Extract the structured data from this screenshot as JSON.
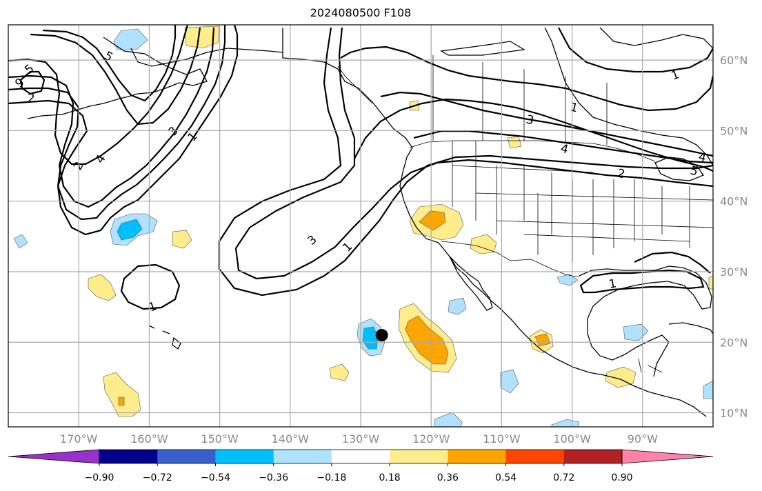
{
  "title": "2024080500 F108",
  "map": {
    "lon_range": [
      -180,
      -80
    ],
    "lat_range": [
      8,
      65
    ],
    "gridlines": true,
    "lat_ticks": [
      {
        "value": 60,
        "label": "60°N"
      },
      {
        "value": 50,
        "label": "50°N"
      },
      {
        "value": 40,
        "label": "40°N"
      },
      {
        "value": 30,
        "label": "30°N"
      },
      {
        "value": 20,
        "label": "20°N"
      },
      {
        "value": 10,
        "label": "10°N"
      }
    ],
    "lon_ticks": [
      {
        "value": -170,
        "label": "170°W"
      },
      {
        "value": -160,
        "label": "160°W"
      },
      {
        "value": -150,
        "label": "150°W"
      },
      {
        "value": -140,
        "label": "140°W"
      },
      {
        "value": -130,
        "label": "130°W"
      },
      {
        "value": -120,
        "label": "120°W"
      },
      {
        "value": -110,
        "label": "110°W"
      },
      {
        "value": -100,
        "label": "100°W"
      },
      {
        "value": -90,
        "label": "90°W"
      }
    ],
    "contour_labels": [
      "1",
      "2",
      "3",
      "4",
      "5",
      "9",
      "5",
      "1",
      "3",
      "4",
      "2",
      "1",
      "3",
      "1",
      "1",
      "5",
      "4",
      "2",
      "1"
    ],
    "marker": {
      "lon": -127,
      "lat": 21
    }
  },
  "colorbar": {
    "colors": [
      "#9932cc",
      "#00008b",
      "#3a5fcd",
      "#00bfff",
      "#b0e2ff",
      "#ffffff",
      "#ffec8b",
      "#ffa500",
      "#ff4500",
      "#b22222",
      "#ff82ab"
    ],
    "ticks": [
      "−0.90",
      "−0.72",
      "−0.54",
      "−0.36",
      "−0.18",
      "0.18",
      "0.36",
      "0.54",
      "0.72",
      "0.90"
    ]
  }
}
